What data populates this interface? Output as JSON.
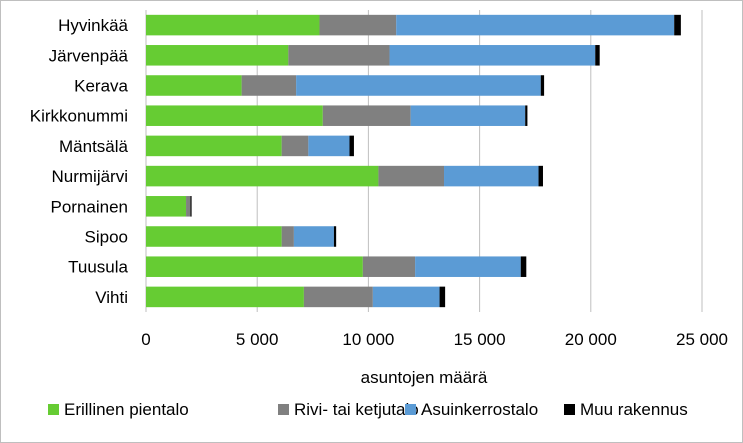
{
  "chart_data": {
    "type": "bar",
    "orientation": "horizontal",
    "stacked": true,
    "categories": [
      "Hyvinkää",
      "Järvenpää",
      "Kerava",
      "Kirkkonummi",
      "Mäntsälä",
      "Nurmijärvi",
      "Pornainen",
      "Sipoo",
      "Tuusula",
      "Vihti"
    ],
    "series": [
      {
        "name": "Erillinen pientalo",
        "color": "#66cc33",
        "values": [
          7800,
          6400,
          4300,
          7950,
          6100,
          10450,
          1800,
          6100,
          9750,
          7100
        ]
      },
      {
        "name": "Rivi- tai ketjutalo",
        "color": "#808080",
        "values": [
          3450,
          4550,
          2450,
          3950,
          1200,
          2950,
          200,
          550,
          2350,
          3100
        ]
      },
      {
        "name": "Asuinkerrostalo",
        "color": "#5b9bd5",
        "values": [
          12500,
          9250,
          11000,
          5150,
          1850,
          4250,
          0,
          1800,
          4750,
          3000
        ]
      },
      {
        "name": "Muu rakennus",
        "color": "#000000",
        "values": [
          300,
          200,
          150,
          100,
          200,
          200,
          50,
          100,
          250,
          250
        ]
      }
    ],
    "xlim": [
      0,
      25000
    ],
    "xticks": [
      0,
      5000,
      10000,
      15000,
      20000,
      25000
    ],
    "xtick_labels": [
      "0",
      "5 000",
      "10 000",
      "15 000",
      "20 000",
      "25 000"
    ],
    "xlabel": "asuntojen määrä",
    "ylabel": "",
    "title": "",
    "grid": "vertical",
    "legend": "bottom"
  }
}
